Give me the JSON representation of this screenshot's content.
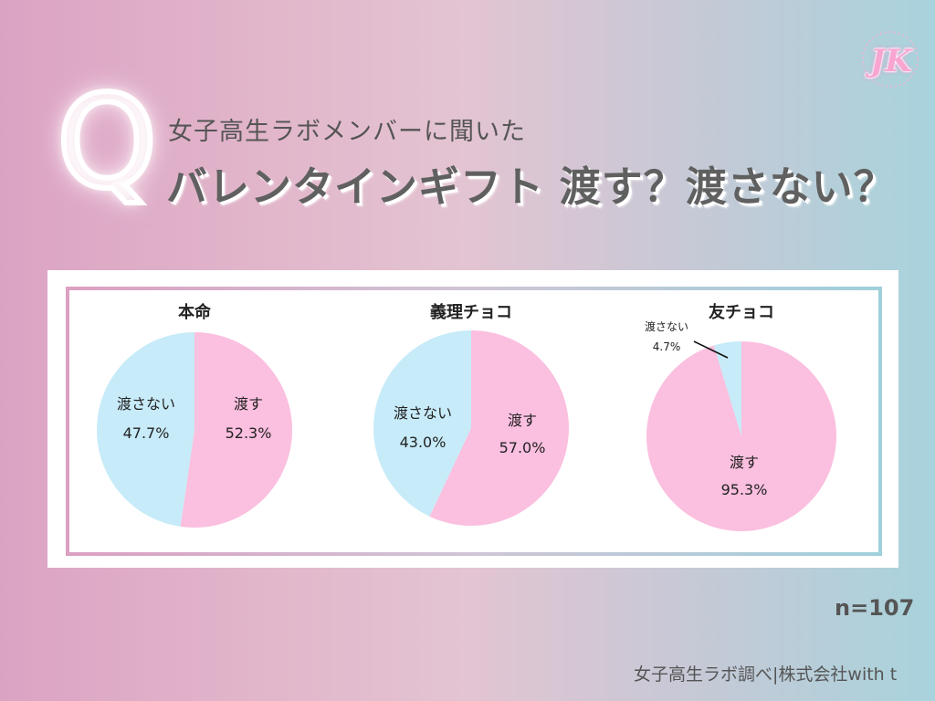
{
  "header": {
    "q_mark": "Q",
    "subtitle": "女子高生ラボメンバーに聞いた",
    "title": "バレンタインギフト 渡す？渡さない？"
  },
  "logo": {
    "text": "JK"
  },
  "colors": {
    "give": "#fbbfdf",
    "not_give": "#c7ebf8"
  },
  "chart_data": [
    {
      "type": "pie",
      "title": "本命",
      "slices": [
        {
          "label": "渡す",
          "value": 52.3,
          "display": "52.3%"
        },
        {
          "label": "渡さない",
          "value": 47.7,
          "display": "47.7%"
        }
      ]
    },
    {
      "type": "pie",
      "title": "義理チョコ",
      "slices": [
        {
          "label": "渡す",
          "value": 57.0,
          "display": "57.0%"
        },
        {
          "label": "渡さない",
          "value": 43.0,
          "display": "43.0%"
        }
      ]
    },
    {
      "type": "pie",
      "title": "友チョコ",
      "slices": [
        {
          "label": "渡す",
          "value": 95.3,
          "display": "95.3%"
        },
        {
          "label": "渡さない",
          "value": 4.7,
          "display": "4.7%"
        }
      ]
    }
  ],
  "footer": {
    "n": "n=107",
    "credit": "女子高生ラボ調べ|株式会社with t"
  }
}
